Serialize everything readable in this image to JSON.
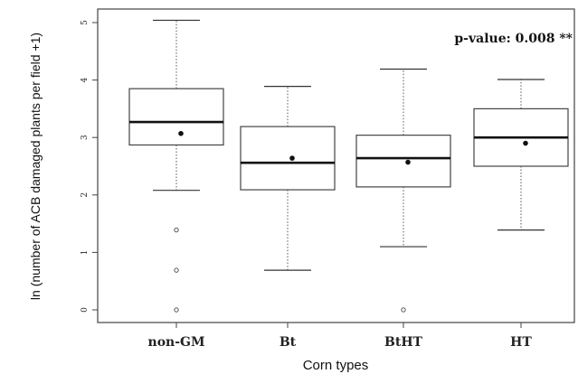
{
  "chart_data": {
    "type": "boxplot",
    "xlabel": "Corn types",
    "ylabel": "ln (number of ACB damaged plants per field +1)",
    "annotation": "p-value: 0.008 **",
    "ylim": [
      -0.1,
      5.15
    ],
    "yticks": [
      "0",
      "1",
      "2",
      "3",
      "4",
      "5"
    ],
    "categories": [
      "non-GM",
      "Bt",
      "BtHT",
      "HT"
    ],
    "boxes": [
      {
        "category": "non-GM",
        "whisker_low": 2.08,
        "q1": 2.87,
        "median": 3.27,
        "q3": 3.85,
        "whisker_high": 5.04,
        "mean": 3.07,
        "outliers": [
          1.39,
          0.69,
          0.0
        ]
      },
      {
        "category": "Bt",
        "whisker_low": 0.69,
        "q1": 2.09,
        "median": 2.56,
        "q3": 3.19,
        "whisker_high": 3.89,
        "mean": 2.64,
        "outliers": []
      },
      {
        "category": "BtHT",
        "whisker_low": 1.1,
        "q1": 2.14,
        "median": 2.64,
        "q3": 3.04,
        "whisker_high": 4.19,
        "mean": 2.57,
        "outliers": [
          0.0
        ]
      },
      {
        "category": "HT",
        "whisker_low": 1.39,
        "q1": 2.5,
        "median": 3.0,
        "q3": 3.5,
        "whisker_high": 4.01,
        "mean": 2.9,
        "outliers": []
      }
    ],
    "grid": false,
    "legend": "none"
  }
}
